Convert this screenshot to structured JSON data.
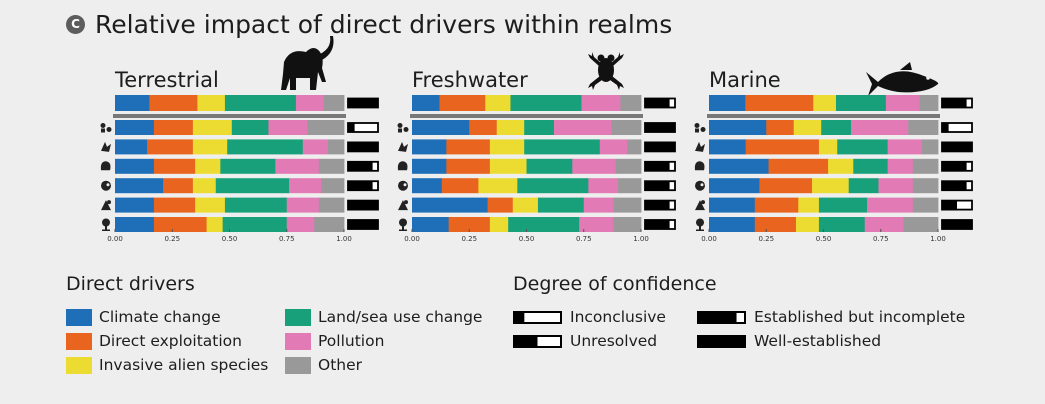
{
  "panel_badge": "C",
  "title": "Relative impact of direct drivers within realms",
  "colors": {
    "climate": "#1f6fb8",
    "exploitation": "#e8641f",
    "invasive": "#ecdc32",
    "landsea": "#17a079",
    "pollution": "#e17ab5",
    "other": "#999999"
  },
  "chart_data": [
    {
      "type": "bar",
      "orientation": "horizontal-stacked",
      "realm": "Terrestrial",
      "silhouette": "elephant-icon",
      "xlim": [
        0,
        1
      ],
      "xticks": [
        "0.00",
        "0.25",
        "0.50",
        "0.75",
        "1.00"
      ],
      "row_icons": [
        "all-realm",
        "nature-contribution-icon",
        "species-icon",
        "community-icon",
        "ecosystem-icon",
        "tree-icon",
        "plant-icon"
      ],
      "series_keys": [
        "climate",
        "exploitation",
        "invasive",
        "landsea",
        "pollution",
        "other"
      ],
      "rows": [
        {
          "values": [
            0.15,
            0.21,
            0.12,
            0.31,
            0.12,
            0.09
          ],
          "confidence": "well-established"
        },
        {
          "values": [
            0.17,
            0.17,
            0.17,
            0.16,
            0.17,
            0.16
          ],
          "confidence": "inconclusive"
        },
        {
          "values": [
            0.14,
            0.2,
            0.15,
            0.33,
            0.11,
            0.07
          ],
          "confidence": "well-established"
        },
        {
          "values": [
            0.17,
            0.18,
            0.11,
            0.24,
            0.19,
            0.11
          ],
          "confidence": "established-incomplete"
        },
        {
          "values": [
            0.21,
            0.13,
            0.1,
            0.32,
            0.14,
            0.1
          ],
          "confidence": "established-incomplete"
        },
        {
          "values": [
            0.17,
            0.18,
            0.13,
            0.27,
            0.14,
            0.11
          ],
          "confidence": "well-established"
        },
        {
          "values": [
            0.17,
            0.23,
            0.07,
            0.28,
            0.12,
            0.13
          ],
          "confidence": "well-established"
        }
      ]
    },
    {
      "type": "bar",
      "orientation": "horizontal-stacked",
      "realm": "Freshwater",
      "silhouette": "frog-icon",
      "xlim": [
        0,
        1
      ],
      "xticks": [
        "0.00",
        "0.25",
        "0.50",
        "0.75",
        "1.00"
      ],
      "row_icons": [
        "all-realm",
        "nature-contribution-icon",
        "species-icon",
        "community-icon",
        "ecosystem-icon",
        "tree-icon",
        "plant-icon"
      ],
      "series_keys": [
        "climate",
        "exploitation",
        "invasive",
        "landsea",
        "pollution",
        "other"
      ],
      "rows": [
        {
          "values": [
            0.12,
            0.2,
            0.11,
            0.31,
            0.17,
            0.09
          ],
          "confidence": "established-incomplete"
        },
        {
          "values": [
            0.25,
            0.12,
            0.12,
            0.13,
            0.25,
            0.13
          ],
          "confidence": "well-established"
        },
        {
          "values": [
            0.15,
            0.19,
            0.15,
            0.33,
            0.12,
            0.06
          ],
          "confidence": "well-established"
        },
        {
          "values": [
            0.15,
            0.19,
            0.16,
            0.2,
            0.19,
            0.11
          ],
          "confidence": "established-incomplete"
        },
        {
          "values": [
            0.13,
            0.16,
            0.17,
            0.31,
            0.13,
            0.1
          ],
          "confidence": "established-incomplete"
        },
        {
          "values": [
            0.33,
            0.11,
            0.11,
            0.2,
            0.13,
            0.12
          ],
          "confidence": "established-incomplete"
        },
        {
          "values": [
            0.16,
            0.18,
            0.08,
            0.31,
            0.15,
            0.12
          ],
          "confidence": "established-incomplete"
        }
      ]
    },
    {
      "type": "bar",
      "orientation": "horizontal-stacked",
      "realm": "Marine",
      "silhouette": "fish-icon",
      "xlim": [
        0,
        1
      ],
      "xticks": [
        "0.00",
        "0.25",
        "0.50",
        "0.75",
        "1.00"
      ],
      "row_icons": [
        "all-realm",
        "nature-contribution-icon",
        "species-icon",
        "community-icon",
        "ecosystem-icon",
        "tree-icon",
        "plant-icon"
      ],
      "series_keys": [
        "climate",
        "exploitation",
        "invasive",
        "landsea",
        "pollution",
        "other"
      ],
      "rows": [
        {
          "values": [
            0.16,
            0.3,
            0.1,
            0.22,
            0.15,
            0.08
          ],
          "confidence": "established-incomplete"
        },
        {
          "values": [
            0.25,
            0.12,
            0.12,
            0.13,
            0.25,
            0.13
          ],
          "confidence": "inconclusive"
        },
        {
          "values": [
            0.16,
            0.32,
            0.08,
            0.22,
            0.15,
            0.07
          ],
          "confidence": "well-established"
        },
        {
          "values": [
            0.26,
            0.26,
            0.11,
            0.15,
            0.11,
            0.11
          ],
          "confidence": "established-incomplete"
        },
        {
          "values": [
            0.22,
            0.23,
            0.16,
            0.13,
            0.15,
            0.11
          ],
          "confidence": "established-incomplete"
        },
        {
          "values": [
            0.2,
            0.19,
            0.09,
            0.21,
            0.2,
            0.11
          ],
          "confidence": "unresolved"
        },
        {
          "values": [
            0.2,
            0.18,
            0.1,
            0.2,
            0.17,
            0.15
          ],
          "confidence": "well-established"
        }
      ]
    }
  ],
  "legend_drivers": {
    "title": "Direct drivers",
    "items": [
      {
        "key": "climate",
        "label": "Climate change"
      },
      {
        "key": "exploitation",
        "label": "Direct exploitation"
      },
      {
        "key": "invasive",
        "label": "Invasive alien species"
      },
      {
        "key": "landsea",
        "label": "Land/sea use change"
      },
      {
        "key": "pollution",
        "label": "Pollution"
      },
      {
        "key": "other",
        "label": "Other"
      }
    ]
  },
  "legend_confidence": {
    "title": "Degree of confidence",
    "items": [
      {
        "key": "inconclusive",
        "label": "Inconclusive"
      },
      {
        "key": "unresolved",
        "label": "Unresolved"
      },
      {
        "key": "established-incomplete",
        "label": "Established but incomplete"
      },
      {
        "key": "well-established",
        "label": "Well-established"
      }
    ]
  }
}
